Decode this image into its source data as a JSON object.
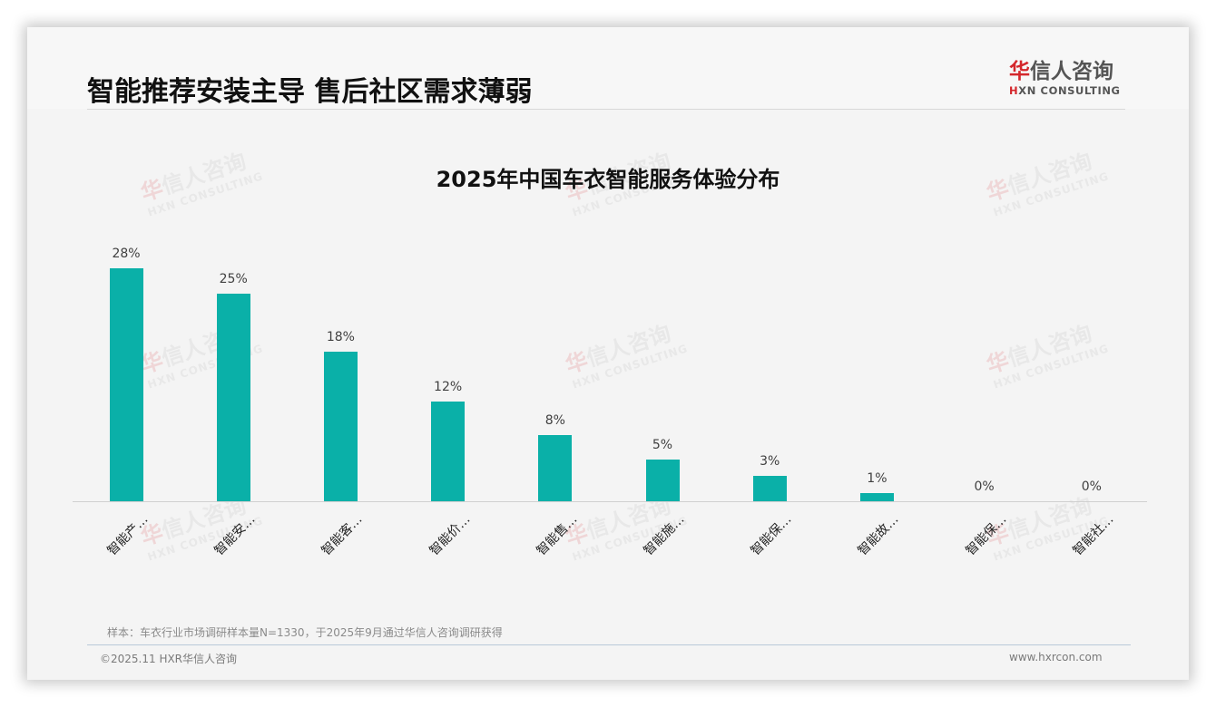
{
  "header": {
    "title": "智能推荐安装主导 售后社区需求薄弱",
    "logo_cn_red": "华",
    "logo_cn_rest": "信人咨询",
    "logo_en_red": "H",
    "logo_en_rest": "XN CONSULTING"
  },
  "watermark": {
    "cn_red": "华",
    "cn_rest": "信人咨询",
    "en": "HXN CONSULTING"
  },
  "chart_data": {
    "type": "bar",
    "title": "2025年中国车衣智能服务体验分布",
    "categories": [
      "智能产…",
      "智能安…",
      "智能客…",
      "智能价…",
      "智能售…",
      "智能施…",
      "智能保…",
      "智能故…",
      "智能保…",
      "智能社…"
    ],
    "values": [
      28,
      25,
      18,
      12,
      8,
      5,
      3,
      1,
      0,
      0
    ],
    "value_labels": [
      "28%",
      "25%",
      "18%",
      "12%",
      "8%",
      "5%",
      "3%",
      "1%",
      "0%",
      "0%"
    ],
    "unit": "%",
    "xlabel": "",
    "ylabel": "",
    "ylim": [
      0,
      30
    ],
    "grid": false,
    "legend": null,
    "bar_color": "#0ab0a8"
  },
  "footer": {
    "note": "样本：车衣行业市场调研样本量N=1330，于2025年9月通过华信人咨询调研获得",
    "copyright": "©2025.11 HXR华信人咨询",
    "website": "www.hxrcon.com"
  }
}
